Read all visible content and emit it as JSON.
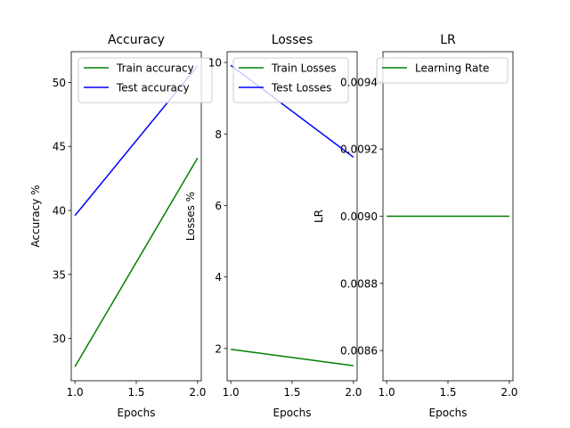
{
  "chart_data": [
    {
      "type": "line",
      "title": "Accuracy",
      "xlabel": "Epochs",
      "ylabel": "Accuracy %",
      "xlim": [
        0.97,
        2.03
      ],
      "ylim": [
        26.7,
        52.4
      ],
      "xticks": [
        1.0,
        1.5,
        2.0
      ],
      "xtick_labels": [
        "1.0",
        "1.5",
        "2.0"
      ],
      "yticks": [
        30,
        35,
        40,
        45,
        50
      ],
      "ytick_labels": [
        "30",
        "35",
        "40",
        "45",
        "50"
      ],
      "legend": "top-right",
      "series": [
        {
          "name": "Train accuracy",
          "color": "#008000",
          "x": [
            1.0,
            2.0
          ],
          "y": [
            27.8,
            44.1
          ]
        },
        {
          "name": "Test accuracy",
          "color": "#0000ff",
          "x": [
            1.0,
            2.0
          ],
          "y": [
            39.6,
            51.3
          ]
        }
      ]
    },
    {
      "type": "line",
      "title": "Losses",
      "xlabel": "Epochs",
      "ylabel": "Losses %",
      "xlim": [
        0.97,
        2.03
      ],
      "ylim": [
        1.1,
        10.3
      ],
      "xticks": [
        1.0,
        1.5,
        2.0
      ],
      "xtick_labels": [
        "1.0",
        "1.5",
        "2.0"
      ],
      "yticks": [
        2,
        4,
        6,
        8,
        10
      ],
      "ytick_labels": [
        "2",
        "4",
        "6",
        "8",
        "10"
      ],
      "legend": "top-right",
      "series": [
        {
          "name": "Train Losses",
          "color": "#008000",
          "x": [
            1.0,
            2.0
          ],
          "y": [
            1.98,
            1.52
          ]
        },
        {
          "name": "Test Losses",
          "color": "#0000ff",
          "x": [
            1.0,
            2.0
          ],
          "y": [
            9.92,
            7.35
          ]
        }
      ]
    },
    {
      "type": "line",
      "title": "LR",
      "xlabel": "Epochs",
      "ylabel": "LR",
      "xlim": [
        0.97,
        2.03
      ],
      "ylim": [
        0.00851,
        0.00949
      ],
      "xticks": [
        1.0,
        1.5,
        2.0
      ],
      "xtick_labels": [
        "1.0",
        "1.5",
        "2.0"
      ],
      "yticks": [
        0.0086,
        0.0088,
        0.009,
        0.0092,
        0.0094
      ],
      "ytick_labels": [
        "0.0086",
        "0.0088",
        "0.0090",
        "0.0092",
        "0.0094"
      ],
      "legend": "top-left",
      "series": [
        {
          "name": "Learning Rate",
          "color": "#008000",
          "x": [
            1.0,
            2.0
          ],
          "y": [
            0.009,
            0.009
          ]
        }
      ]
    }
  ]
}
